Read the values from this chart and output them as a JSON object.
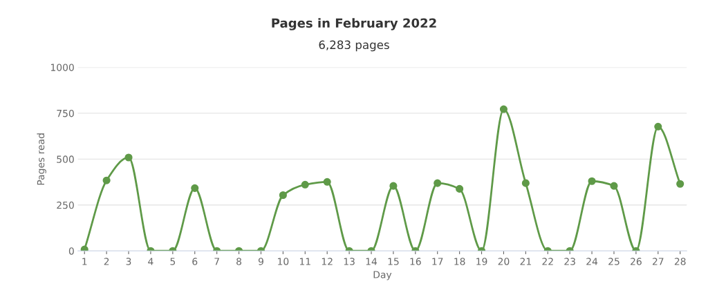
{
  "chart_data": {
    "type": "line",
    "title": "Pages in February 2022",
    "subtitle": "6,283 pages",
    "xlabel": "Day",
    "ylabel": "Pages read",
    "categories": [
      "1",
      "2",
      "3",
      "4",
      "5",
      "6",
      "7",
      "8",
      "9",
      "10",
      "11",
      "12",
      "13",
      "14",
      "15",
      "16",
      "17",
      "18",
      "19",
      "20",
      "21",
      "22",
      "23",
      "24",
      "25",
      "26",
      "27",
      "28"
    ],
    "series": [
      {
        "color": "#5f9a48",
        "values": [
          8,
          384,
          509,
          0,
          0,
          342,
          0,
          0,
          0,
          304,
          361,
          376,
          0,
          0,
          354,
          0,
          369,
          338,
          0,
          772,
          369,
          0,
          0,
          380,
          354,
          0,
          677,
          365
        ]
      }
    ],
    "ylim": [
      0,
      1000
    ],
    "yticks": [
      0,
      250,
      500,
      750,
      1000
    ],
    "grid": "y",
    "legend": false,
    "marker": "circle",
    "line_style": "solid"
  }
}
